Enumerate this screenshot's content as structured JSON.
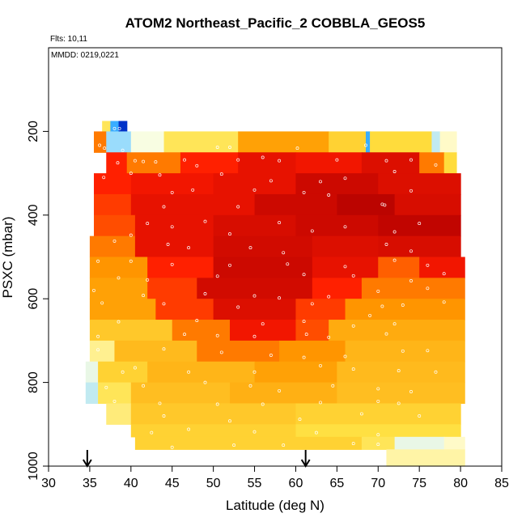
{
  "chart_data": {
    "type": "heatmap",
    "title": "ATOM2 Northeast_Pacific_2 COBBLA_GEOS5",
    "flights_note": "Flts: 10,11",
    "date_note": "MMDD: 0219,0221",
    "xlabel": "Latitude (deg N)",
    "ylabel": "PSXC (mbar)",
    "xlim": [
      30,
      85
    ],
    "ylim": [
      1000,
      0
    ],
    "xticks": [
      30,
      35,
      40,
      45,
      50,
      55,
      60,
      65,
      70,
      75,
      80,
      85
    ],
    "yticks": [
      200,
      400,
      600,
      800,
      1000
    ],
    "arrows_at_latitude": [
      34.7,
      61.2
    ],
    "color_scale": [
      "#0000aa",
      "#0090ff",
      "#8fd8ff",
      "#ffffe0",
      "#ffe040",
      "#ff9a00",
      "#ff1a00",
      "#b00000"
    ],
    "rows": [
      {
        "p_top": 175,
        "p_bot": 200,
        "segments": [
          [
            36.5,
            37.5,
            0.55
          ],
          [
            37.5,
            38.5,
            0.2
          ],
          [
            38.5,
            39.5,
            0.05
          ]
        ]
      },
      {
        "p_top": 200,
        "p_bot": 250,
        "segments": [
          [
            35.5,
            37.0,
            0.75
          ],
          [
            37.0,
            40.0,
            0.3
          ],
          [
            40.0,
            44.0,
            0.42
          ],
          [
            44.0,
            53.0,
            0.55
          ],
          [
            53.0,
            64.0,
            0.7
          ],
          [
            64.0,
            68.5,
            0.6
          ],
          [
            68.5,
            69.0,
            0.2
          ],
          [
            69.0,
            76.5,
            0.58
          ],
          [
            76.5,
            77.5,
            0.35
          ],
          [
            77.5,
            79.5,
            0.45
          ]
        ]
      },
      {
        "p_top": 250,
        "p_bot": 300,
        "segments": [
          [
            37.0,
            39.5,
            0.85
          ],
          [
            39.5,
            46.0,
            0.75
          ],
          [
            46.0,
            53.0,
            0.85
          ],
          [
            53.0,
            60.0,
            0.9
          ],
          [
            60.0,
            68.0,
            0.88
          ],
          [
            68.0,
            75.0,
            0.92
          ],
          [
            75.0,
            78.0,
            0.75
          ],
          [
            78.0,
            79.5,
            0.58
          ]
        ]
      },
      {
        "p_top": 300,
        "p_bot": 350,
        "segments": [
          [
            35.5,
            40.0,
            0.85
          ],
          [
            40.0,
            50.0,
            0.88
          ],
          [
            50.0,
            60.0,
            0.9
          ],
          [
            60.0,
            70.0,
            0.95
          ],
          [
            70.0,
            80.0,
            0.92
          ]
        ]
      },
      {
        "p_top": 350,
        "p_bot": 400,
        "segments": [
          [
            35.5,
            40.0,
            0.82
          ],
          [
            40.0,
            55.0,
            0.9
          ],
          [
            55.0,
            65.0,
            0.95
          ],
          [
            65.0,
            72.0,
            0.98
          ],
          [
            72.0,
            80.0,
            0.93
          ]
        ]
      },
      {
        "p_top": 400,
        "p_bot": 450,
        "segments": [
          [
            35.5,
            40.5,
            0.8
          ],
          [
            40.5,
            50.0,
            0.9
          ],
          [
            50.0,
            60.0,
            0.93
          ],
          [
            60.0,
            70.0,
            0.95
          ],
          [
            70.0,
            80.0,
            0.97
          ]
        ]
      },
      {
        "p_top": 450,
        "p_bot": 500,
        "segments": [
          [
            35.0,
            40.5,
            0.75
          ],
          [
            40.5,
            50.0,
            0.9
          ],
          [
            50.0,
            62.0,
            0.94
          ],
          [
            62.0,
            70.0,
            0.92
          ],
          [
            70.0,
            80.0,
            0.93
          ]
        ]
      },
      {
        "p_top": 500,
        "p_bot": 550,
        "segments": [
          [
            35.0,
            42.0,
            0.72
          ],
          [
            42.0,
            50.0,
            0.85
          ],
          [
            50.0,
            62.0,
            0.95
          ],
          [
            62.0,
            70.0,
            0.9
          ],
          [
            70.0,
            75.0,
            0.78
          ],
          [
            75.0,
            80.5,
            0.88
          ]
        ]
      },
      {
        "p_top": 550,
        "p_bot": 600,
        "segments": [
          [
            35.0,
            42.0,
            0.7
          ],
          [
            42.0,
            48.0,
            0.82
          ],
          [
            48.0,
            62.0,
            0.94
          ],
          [
            62.0,
            68.0,
            0.85
          ],
          [
            68.0,
            80.5,
            0.75
          ]
        ]
      },
      {
        "p_top": 600,
        "p_bot": 650,
        "segments": [
          [
            35.0,
            43.0,
            0.7
          ],
          [
            43.0,
            50.0,
            0.82
          ],
          [
            50.0,
            60.0,
            0.92
          ],
          [
            60.0,
            66.0,
            0.82
          ],
          [
            66.0,
            80.5,
            0.72
          ]
        ]
      },
      {
        "p_top": 650,
        "p_bot": 700,
        "segments": [
          [
            35.0,
            45.0,
            0.62
          ],
          [
            45.0,
            52.0,
            0.75
          ],
          [
            52.0,
            60.0,
            0.88
          ],
          [
            60.0,
            64.0,
            0.8
          ],
          [
            64.0,
            80.5,
            0.68
          ]
        ]
      },
      {
        "p_top": 700,
        "p_bot": 750,
        "segments": [
          [
            35.0,
            38.0,
            0.5
          ],
          [
            38.0,
            48.0,
            0.65
          ],
          [
            48.0,
            58.0,
            0.75
          ],
          [
            58.0,
            66.0,
            0.72
          ],
          [
            66.0,
            80.5,
            0.66
          ]
        ]
      },
      {
        "p_top": 750,
        "p_bot": 800,
        "segments": [
          [
            34.5,
            36.0,
            0.4
          ],
          [
            36.0,
            42.0,
            0.6
          ],
          [
            42.0,
            55.0,
            0.66
          ],
          [
            55.0,
            65.0,
            0.7
          ],
          [
            65.0,
            80.5,
            0.65
          ]
        ]
      },
      {
        "p_top": 800,
        "p_bot": 850,
        "segments": [
          [
            34.5,
            36.0,
            0.35
          ],
          [
            36.0,
            40.0,
            0.55
          ],
          [
            40.0,
            52.0,
            0.64
          ],
          [
            52.0,
            65.0,
            0.67
          ],
          [
            65.0,
            80.5,
            0.64
          ]
        ]
      },
      {
        "p_top": 850,
        "p_bot": 900,
        "segments": [
          [
            37.0,
            40.0,
            0.52
          ],
          [
            40.0,
            60.0,
            0.62
          ],
          [
            60.0,
            80.0,
            0.6
          ]
        ]
      },
      {
        "p_top": 900,
        "p_bot": 930,
        "segments": [
          [
            40.0,
            60.0,
            0.6
          ],
          [
            60.0,
            80.0,
            0.57
          ]
        ]
      },
      {
        "p_top": 930,
        "p_bot": 960,
        "segments": [
          [
            40.5,
            68.0,
            0.6
          ],
          [
            68.0,
            72.0,
            0.55
          ],
          [
            72.0,
            78.0,
            0.4
          ],
          [
            78.0,
            80.5,
            0.45
          ]
        ]
      },
      {
        "p_top": 960,
        "p_bot": 1000,
        "segments": [
          [
            71.0,
            80.5,
            0.48
          ]
        ]
      }
    ],
    "observation_points": [
      [
        38.0,
        193
      ],
      [
        38.6,
        193
      ],
      [
        36.2,
        233
      ],
      [
        36.8,
        240
      ],
      [
        39.0,
        245
      ],
      [
        50.5,
        238
      ],
      [
        52.0,
        238
      ],
      [
        60.2,
        240
      ],
      [
        68.5,
        233
      ],
      [
        38.4,
        275
      ],
      [
        40.5,
        270
      ],
      [
        41.5,
        272
      ],
      [
        43.0,
        273
      ],
      [
        46.5,
        268
      ],
      [
        48.0,
        282
      ],
      [
        53.0,
        268
      ],
      [
        56.0,
        262
      ],
      [
        58.0,
        270
      ],
      [
        65.0,
        268
      ],
      [
        71.0,
        270
      ],
      [
        74.0,
        268
      ],
      [
        40.0,
        300
      ],
      [
        43.5,
        304
      ],
      [
        51.0,
        302
      ],
      [
        57.0,
        318
      ],
      [
        63.0,
        320
      ],
      [
        66.0,
        312
      ],
      [
        72.0,
        296
      ],
      [
        77.0,
        280
      ],
      [
        36.7,
        310
      ],
      [
        45.0,
        346
      ],
      [
        47.5,
        340
      ],
      [
        55.0,
        340
      ],
      [
        61.0,
        346
      ],
      [
        64.0,
        352
      ],
      [
        70.5,
        374
      ],
      [
        70.8,
        376
      ],
      [
        74.0,
        342
      ],
      [
        44.0,
        380
      ],
      [
        53.0,
        380
      ],
      [
        42.0,
        420
      ],
      [
        45.0,
        428
      ],
      [
        49.0,
        415
      ],
      [
        58.0,
        418
      ],
      [
        66.0,
        428
      ],
      [
        72.0,
        440
      ],
      [
        40.0,
        448
      ],
      [
        52.0,
        445
      ],
      [
        62.0,
        438
      ],
      [
        75.0,
        420
      ],
      [
        38.0,
        462
      ],
      [
        44.5,
        470
      ],
      [
        47.0,
        478
      ],
      [
        54.5,
        478
      ],
      [
        58.5,
        490
      ],
      [
        71.0,
        470
      ],
      [
        74.0,
        486
      ],
      [
        36.0,
        510
      ],
      [
        40.0,
        510
      ],
      [
        45.0,
        518
      ],
      [
        52.0,
        520
      ],
      [
        59.0,
        517
      ],
      [
        66.0,
        523
      ],
      [
        72.0,
        508
      ],
      [
        76.0,
        520
      ],
      [
        38.5,
        550
      ],
      [
        42.0,
        555
      ],
      [
        50.5,
        546
      ],
      [
        61.0,
        542
      ],
      [
        67.0,
        545
      ],
      [
        74.0,
        557
      ],
      [
        78.0,
        540
      ],
      [
        35.5,
        580
      ],
      [
        41.5,
        592
      ],
      [
        49.0,
        588
      ],
      [
        55.0,
        593
      ],
      [
        58.0,
        598
      ],
      [
        64.0,
        595
      ],
      [
        70.0,
        582
      ],
      [
        76.0,
        575
      ],
      [
        36.5,
        610
      ],
      [
        44.0,
        612
      ],
      [
        53.0,
        620
      ],
      [
        62.0,
        612
      ],
      [
        70.5,
        618
      ],
      [
        73.0,
        615
      ],
      [
        78.0,
        608
      ],
      [
        38.5,
        655
      ],
      [
        48.0,
        652
      ],
      [
        56.0,
        660
      ],
      [
        61.0,
        654
      ],
      [
        67.0,
        665
      ],
      [
        72.0,
        660
      ],
      [
        69.0,
        640
      ],
      [
        36.0,
        690
      ],
      [
        46.5,
        685
      ],
      [
        50.5,
        688
      ],
      [
        55.0,
        690
      ],
      [
        61.3,
        685
      ],
      [
        64.0,
        692
      ],
      [
        71.0,
        684
      ],
      [
        36.0,
        722
      ],
      [
        44.0,
        720
      ],
      [
        51.0,
        728
      ],
      [
        57.0,
        735
      ],
      [
        61.0,
        740
      ],
      [
        66.0,
        738
      ],
      [
        73.0,
        725
      ],
      [
        76.0,
        724
      ],
      [
        39.0,
        775
      ],
      [
        40.5,
        765
      ],
      [
        47.0,
        775
      ],
      [
        55.0,
        775
      ],
      [
        63.0,
        760
      ],
      [
        67.0,
        768
      ],
      [
        72.5,
        772
      ],
      [
        77.0,
        775
      ],
      [
        37.0,
        812
      ],
      [
        41.5,
        808
      ],
      [
        49.0,
        800
      ],
      [
        54.5,
        808
      ],
      [
        58.0,
        820
      ],
      [
        64.5,
        808
      ],
      [
        70.0,
        815
      ],
      [
        74.0,
        822
      ],
      [
        38.0,
        845
      ],
      [
        43.5,
        850
      ],
      [
        50.5,
        852
      ],
      [
        56.0,
        852
      ],
      [
        63.0,
        848
      ],
      [
        70.0,
        845
      ],
      [
        72.5,
        850
      ],
      [
        44.0,
        880
      ],
      [
        52.0,
        892
      ],
      [
        60.5,
        888
      ],
      [
        68.0,
        875
      ],
      [
        75.0,
        880
      ],
      [
        42.5,
        920
      ],
      [
        47.0,
        912
      ],
      [
        55.0,
        918
      ],
      [
        62.5,
        920
      ],
      [
        70.0,
        925
      ],
      [
        45.0,
        955
      ],
      [
        52.5,
        950
      ],
      [
        58.5,
        950
      ],
      [
        67.0,
        946
      ],
      [
        70.0,
        948
      ]
    ]
  }
}
